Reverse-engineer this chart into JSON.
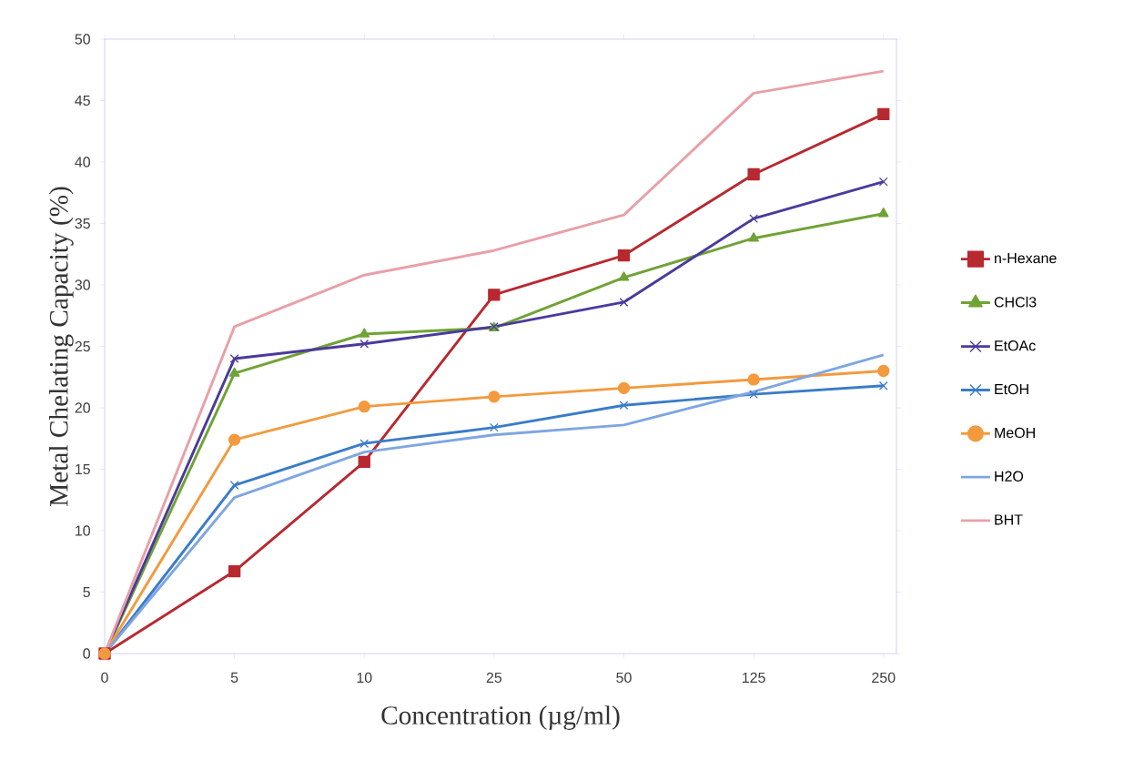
{
  "chart_data": {
    "type": "line",
    "xlabel": "Concentration (µg/ml)",
    "ylabel": "Metal Chelating Capacity (%)",
    "categories": [
      "0",
      "5",
      "10",
      "25",
      "50",
      "125",
      "250"
    ],
    "ylim": [
      0,
      50
    ],
    "yticks": [
      0,
      5,
      10,
      15,
      20,
      25,
      30,
      35,
      40,
      45,
      50
    ],
    "legend": "right",
    "series": [
      {
        "name": "n-Hexane",
        "color": "#b8292f",
        "marker": "square",
        "values": [
          0,
          6.7,
          15.6,
          29.2,
          32.4,
          39.0,
          43.9
        ]
      },
      {
        "name": "CHCl3",
        "color": "#6fa336",
        "marker": "triangle",
        "values": [
          0,
          22.8,
          26.0,
          26.5,
          30.6,
          33.8,
          35.8
        ]
      },
      {
        "name": "EtOAc",
        "color": "#4b3a9c",
        "marker": "cross",
        "values": [
          0,
          24.0,
          25.2,
          26.6,
          28.6,
          35.4,
          38.4
        ]
      },
      {
        "name": "EtOH",
        "color": "#3a7cc8",
        "marker": "cross",
        "values": [
          0,
          13.7,
          17.1,
          18.4,
          20.2,
          21.1,
          21.8
        ]
      },
      {
        "name": "MeOH",
        "color": "#f39a3e",
        "marker": "circle",
        "values": [
          0,
          17.4,
          20.1,
          20.9,
          21.6,
          22.3,
          23.0
        ]
      },
      {
        "name": "H2O",
        "color": "#7ea6e2",
        "marker": "none",
        "values": [
          0,
          12.7,
          16.4,
          17.8,
          18.6,
          21.3,
          24.3
        ]
      },
      {
        "name": "BHT",
        "color": "#e8a0a8",
        "marker": "none",
        "values": [
          0,
          26.6,
          30.8,
          32.8,
          35.7,
          45.6,
          47.4
        ]
      }
    ]
  }
}
